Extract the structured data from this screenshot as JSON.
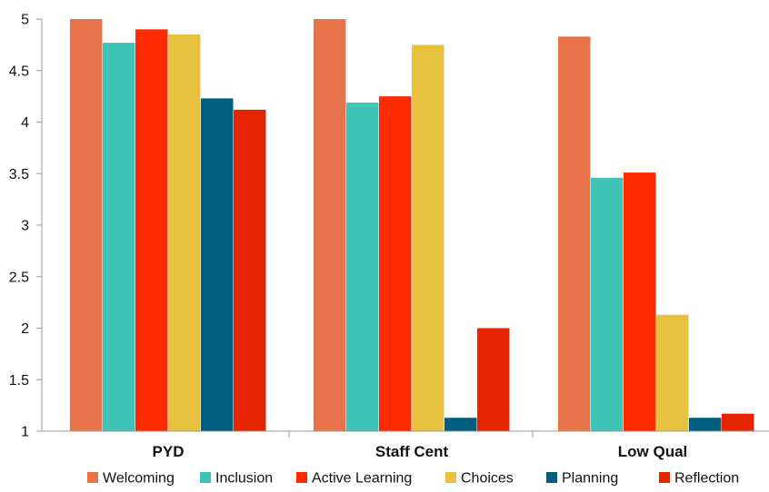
{
  "chart_data": {
    "type": "bar",
    "title": "",
    "xlabel": "",
    "ylabel": "",
    "ylim": [
      1,
      5
    ],
    "yticks": [
      "1",
      "1.5",
      "2",
      "2.5",
      "3",
      "3.5",
      "4",
      "4.5",
      "5"
    ],
    "grid": false,
    "legend_position": "bottom",
    "categories": [
      "PYD",
      "Staff Cent",
      "Low Qual"
    ],
    "series": [
      {
        "name": "Welcoming",
        "color": "#E6734A",
        "values": [
          5.0,
          5.0,
          4.83
        ]
      },
      {
        "name": "Inclusion",
        "color": "#40C4B7",
        "values": [
          4.77,
          4.19,
          3.46
        ]
      },
      {
        "name": "Active Learning",
        "color": "#FF2A00",
        "values": [
          4.9,
          4.25,
          3.51
        ]
      },
      {
        "name": "Choices",
        "color": "#E8C13E",
        "values": [
          4.85,
          4.75,
          2.13
        ]
      },
      {
        "name": "Planning",
        "color": "#005F7F",
        "values": [
          4.23,
          1.13,
          1.13
        ]
      },
      {
        "name": "Reflection",
        "color": "#E52500",
        "values": [
          4.12,
          2.0,
          1.17
        ]
      }
    ]
  }
}
